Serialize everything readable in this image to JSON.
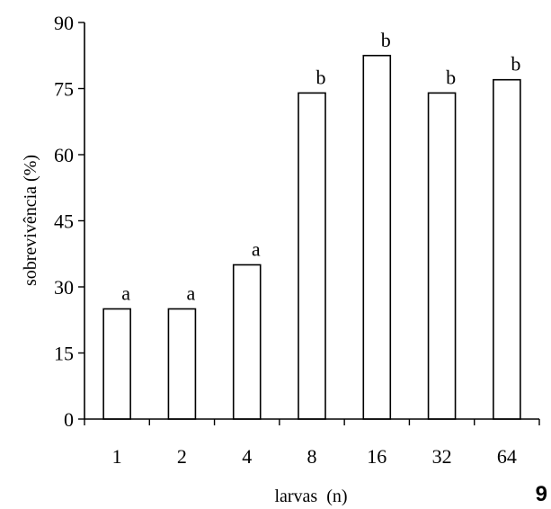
{
  "page_number": "9",
  "chart_data": {
    "type": "bar",
    "categories": [
      "1",
      "2",
      "4",
      "8",
      "16",
      "32",
      "64"
    ],
    "values": [
      25,
      25,
      35,
      74,
      82.5,
      74,
      77
    ],
    "bar_labels": [
      "a",
      "a",
      "a",
      "b",
      "b",
      "b",
      "b"
    ],
    "xlabel": "larvas  (n)",
    "ylabel": "sobrevivência (%)",
    "ylim": [
      0,
      90
    ],
    "yticks": [
      "0",
      "15",
      "30",
      "45",
      "60",
      "75",
      "90"
    ],
    "grid": false,
    "legend": "none"
  }
}
